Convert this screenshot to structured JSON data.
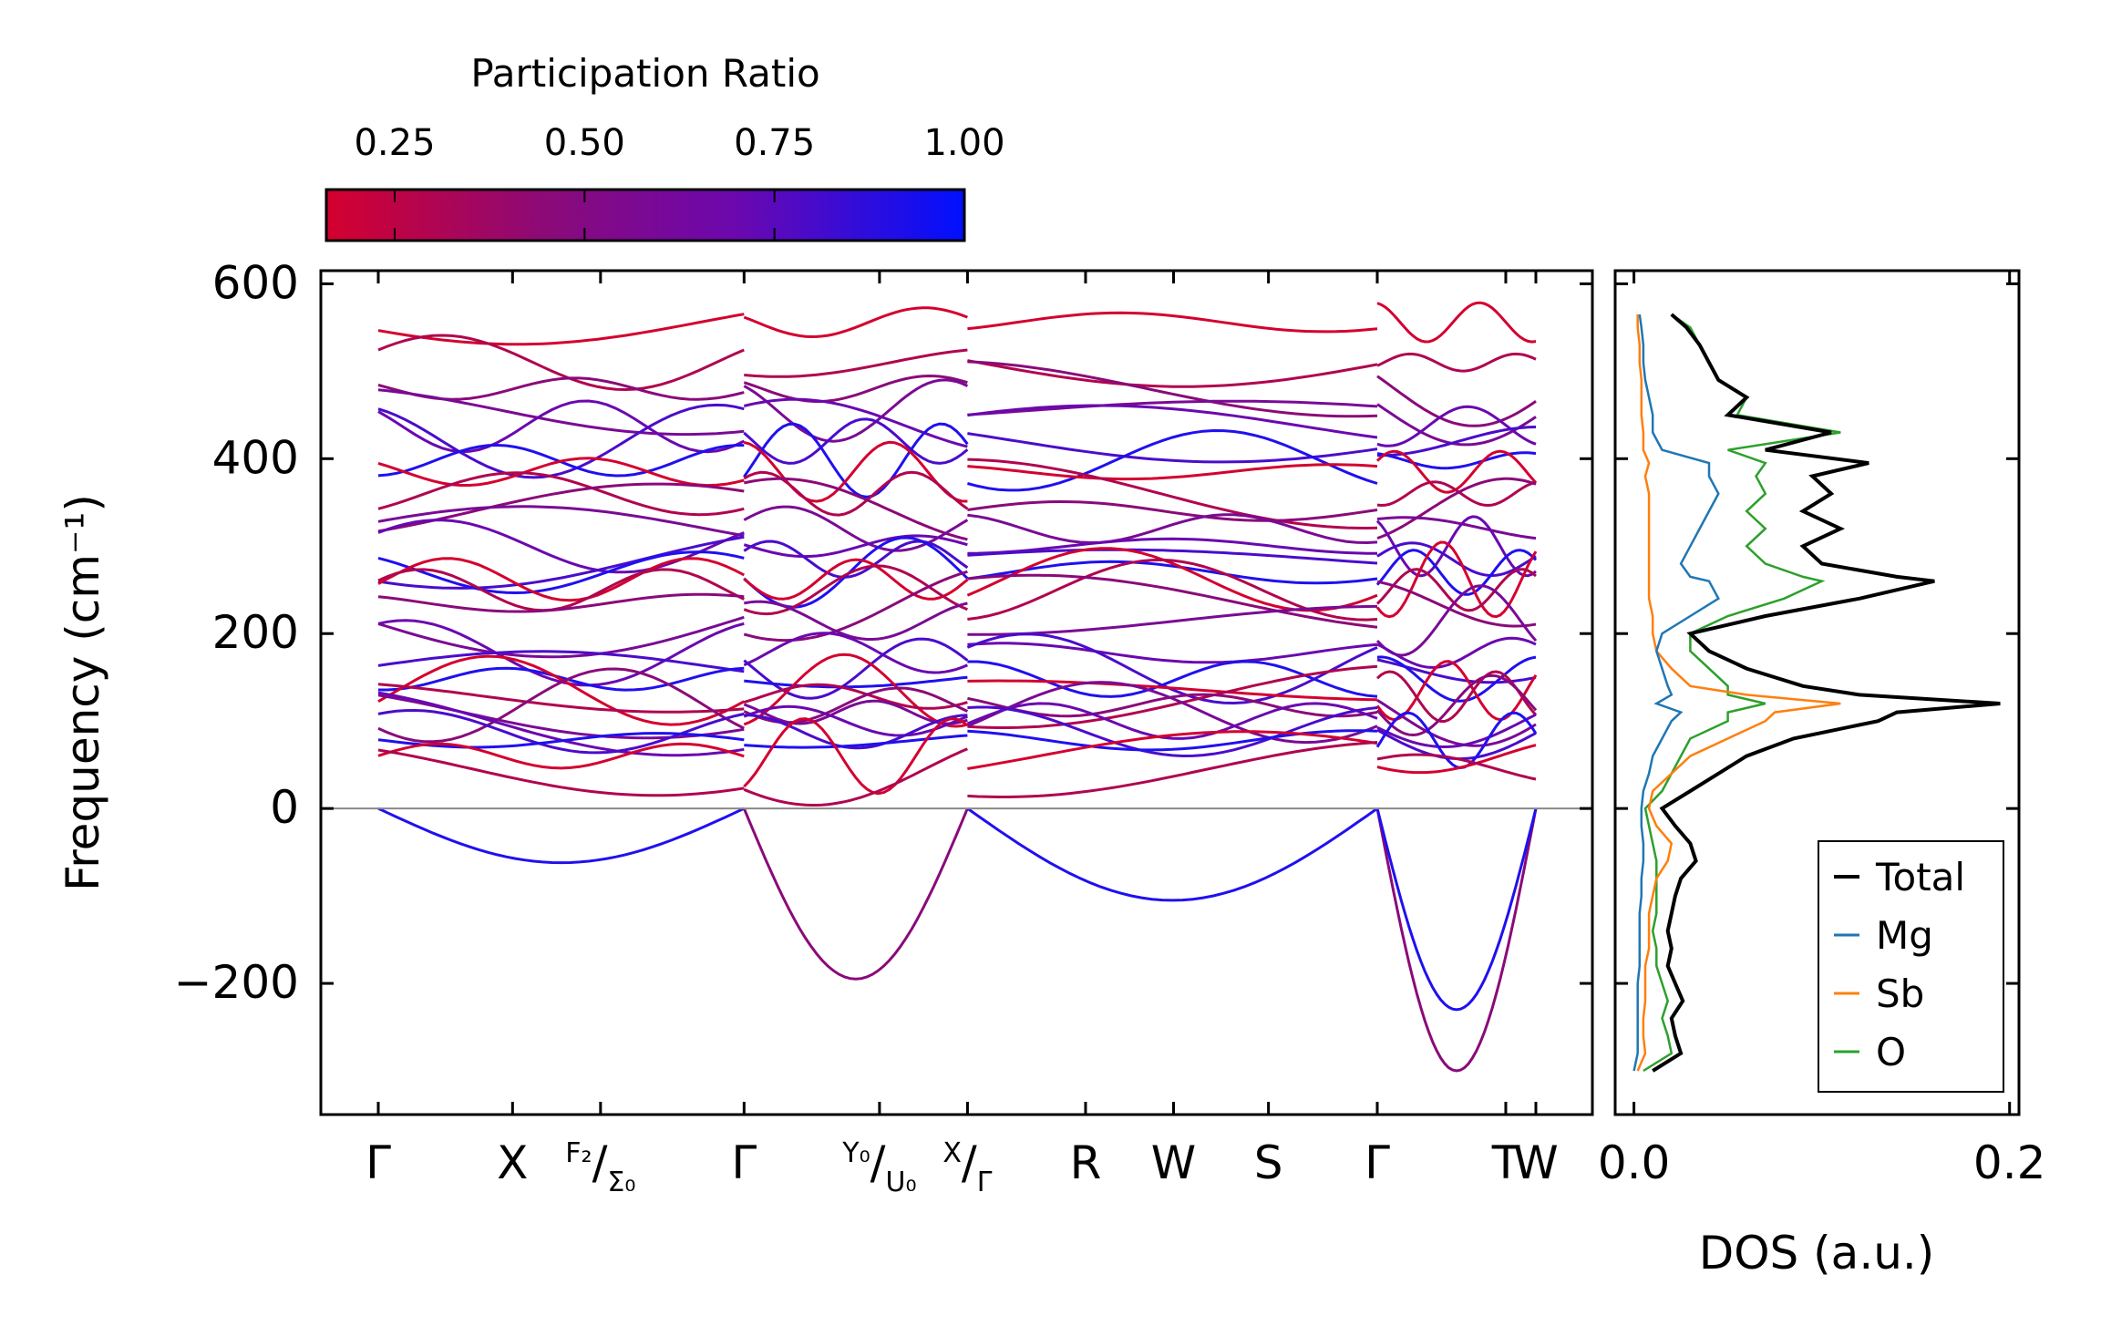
{
  "chart_data": [
    {
      "type": "line",
      "panel": "phonon-dispersion",
      "title": "",
      "ylabel": "Frequency (cm⁻¹)",
      "ylim": [
        -350,
        615
      ],
      "yticks": [
        600,
        400,
        200,
        0,
        -200
      ],
      "ytick_labels": [
        "600",
        "400",
        "200",
        "0",
        "−200"
      ],
      "k_points": [
        {
          "label": "Γ",
          "pos": 0.0
        },
        {
          "label": "X",
          "pos": 0.116
        },
        {
          "label": "F₂/Σ₀",
          "pos": 0.192
        },
        {
          "label": "Γ",
          "pos": 0.316
        },
        {
          "label": "Y₀/U₀",
          "pos": 0.433
        },
        {
          "label": "X/Γ",
          "pos": 0.509
        },
        {
          "label": "R",
          "pos": 0.611
        },
        {
          "label": "W",
          "pos": 0.687
        },
        {
          "label": "S",
          "pos": 0.769
        },
        {
          "label": "Γ",
          "pos": 0.863
        },
        {
          "label": "T",
          "pos": 0.974
        },
        {
          "label": "W",
          "pos": 1.0
        }
      ],
      "segment_breaks": [
        0.316,
        0.509,
        0.863
      ],
      "zero_line": 0,
      "colorbar": {
        "label": "Participation Ratio",
        "range": [
          0.16,
          1.0
        ],
        "ticks": [
          "0.25",
          "0.50",
          "0.75",
          "1.00"
        ],
        "tick_values": [
          0.25,
          0.5,
          0.75,
          1.0
        ],
        "colormap": [
          "#d4002f",
          "#8a0a79",
          "#6a08b0",
          "#0010ff"
        ]
      },
      "band_levels": [
        556,
        510,
        480,
        455,
        437,
        420,
        398,
        385,
        360,
        340,
        320,
        300,
        285,
        270,
        262,
        250,
        235,
        215,
        178,
        160,
        148,
        135,
        128,
        118,
        110,
        100,
        88,
        78,
        60,
        45
      ],
      "acoustic_min": [
        -62,
        -195,
        -105,
        -300,
        -230
      ]
    },
    {
      "type": "line",
      "panel": "density-of-states",
      "xlabel": "DOS (a.u.)",
      "xlim": [
        -0.01,
        0.205
      ],
      "xticks": [
        0.0,
        0.2
      ],
      "xtick_labels": [
        "0.0",
        "0.2"
      ],
      "ylim": [
        -350,
        615
      ],
      "frequency": [
        -300,
        -280,
        -260,
        -240,
        -220,
        -200,
        -180,
        -160,
        -140,
        -120,
        -100,
        -80,
        -60,
        -40,
        -20,
        0,
        20,
        40,
        60,
        80,
        100,
        110,
        120,
        130,
        140,
        160,
        180,
        200,
        220,
        240,
        260,
        265,
        280,
        300,
        320,
        340,
        360,
        380,
        395,
        410,
        430,
        450,
        470,
        490,
        510,
        530,
        550,
        565
      ],
      "series": [
        {
          "name": "Total",
          "color": "#000000",
          "values": [
            0.01,
            0.025,
            0.022,
            0.02,
            0.026,
            0.022,
            0.018,
            0.02,
            0.018,
            0.02,
            0.022,
            0.025,
            0.033,
            0.03,
            0.022,
            0.015,
            0.03,
            0.045,
            0.06,
            0.085,
            0.13,
            0.14,
            0.195,
            0.12,
            0.09,
            0.06,
            0.04,
            0.03,
            0.07,
            0.12,
            0.16,
            0.14,
            0.1,
            0.09,
            0.11,
            0.09,
            0.105,
            0.095,
            0.125,
            0.07,
            0.105,
            0.05,
            0.06,
            0.045,
            0.04,
            0.035,
            0.028,
            0.02
          ]
        },
        {
          "name": "Mg",
          "color": "#1f77b4",
          "values": [
            0.0,
            0.002,
            0.002,
            0.002,
            0.002,
            0.002,
            0.003,
            0.003,
            0.003,
            0.003,
            0.004,
            0.004,
            0.005,
            0.005,
            0.004,
            0.004,
            0.005,
            0.008,
            0.01,
            0.015,
            0.02,
            0.025,
            0.012,
            0.02,
            0.018,
            0.015,
            0.012,
            0.015,
            0.03,
            0.045,
            0.04,
            0.03,
            0.025,
            0.03,
            0.035,
            0.04,
            0.045,
            0.04,
            0.04,
            0.015,
            0.01,
            0.01,
            0.008,
            0.006,
            0.005,
            0.005,
            0.004,
            0.003
          ]
        },
        {
          "name": "Sb",
          "color": "#ff7f0e",
          "values": [
            0.002,
            0.006,
            0.005,
            0.005,
            0.006,
            0.006,
            0.006,
            0.008,
            0.008,
            0.008,
            0.01,
            0.012,
            0.018,
            0.02,
            0.012,
            0.008,
            0.01,
            0.02,
            0.03,
            0.05,
            0.07,
            0.075,
            0.11,
            0.06,
            0.03,
            0.02,
            0.012,
            0.01,
            0.01,
            0.008,
            0.008,
            0.008,
            0.008,
            0.008,
            0.008,
            0.008,
            0.008,
            0.006,
            0.008,
            0.005,
            0.005,
            0.004,
            0.004,
            0.004,
            0.003,
            0.003,
            0.002,
            0.002
          ]
        },
        {
          "name": "O",
          "color": "#2ca02c",
          "values": [
            0.005,
            0.02,
            0.018,
            0.015,
            0.018,
            0.015,
            0.012,
            0.012,
            0.01,
            0.012,
            0.012,
            0.012,
            0.012,
            0.01,
            0.008,
            0.006,
            0.015,
            0.02,
            0.025,
            0.03,
            0.05,
            0.05,
            0.07,
            0.05,
            0.05,
            0.04,
            0.03,
            0.03,
            0.05,
            0.08,
            0.1,
            0.09,
            0.07,
            0.06,
            0.07,
            0.06,
            0.07,
            0.065,
            0.07,
            0.05,
            0.11,
            0.055,
            0.06,
            0.045,
            0.04,
            0.035,
            0.03,
            0.02
          ]
        }
      ],
      "legend": {
        "position": "lower-right",
        "entries": [
          "Total",
          "Mg",
          "Sb",
          "O"
        ]
      }
    }
  ]
}
